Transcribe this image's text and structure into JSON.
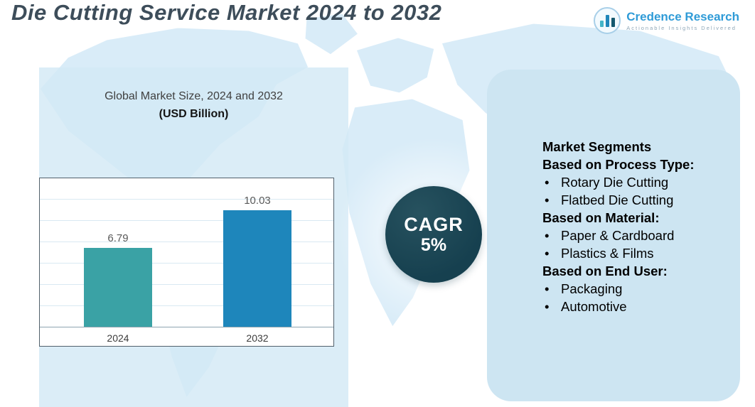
{
  "title": "Die Cutting Service Market 2024 to 2032",
  "logo": {
    "name": "Credence Research",
    "tagline": "Actionable Insights Delivered"
  },
  "chart_data": {
    "type": "bar",
    "title": "Global Market Size, 2024 and 2032",
    "subtitle": "(USD Billion)",
    "categories": [
      "2024",
      "2032"
    ],
    "values": [
      6.79,
      10.03
    ],
    "value_labels": [
      "6.79",
      "10.03"
    ],
    "ylabel": "",
    "xlabel": "",
    "ylim": [
      0,
      12
    ],
    "grid": "horizontal",
    "legend": "none",
    "bar_colors": [
      "#3aa2a5",
      "#1e86bb"
    ]
  },
  "cagr": {
    "label": "CAGR",
    "value": "5%"
  },
  "panel": {
    "heading": "Market Segments",
    "sections": [
      {
        "heading": "Based on Process Type:",
        "items": [
          "Rotary Die Cutting",
          "Flatbed Die Cutting"
        ]
      },
      {
        "heading": "Based on Material:",
        "items": [
          "Paper & Cardboard",
          "Plastics & Films"
        ]
      },
      {
        "heading": "Based on End User:",
        "items": [
          "Packaging",
          "Automotive"
        ]
      }
    ]
  },
  "colors": {
    "title_text": "#3d4d5a",
    "brand_blue": "#2f9bd7",
    "band_bg": "#d3e9f5",
    "panel_bg": "#cde5f2",
    "cagr_circle": "#16404f",
    "bar_2024": "#3aa2a5",
    "bar_2032": "#1e86bb",
    "map_fill": "#d8ecf8"
  }
}
